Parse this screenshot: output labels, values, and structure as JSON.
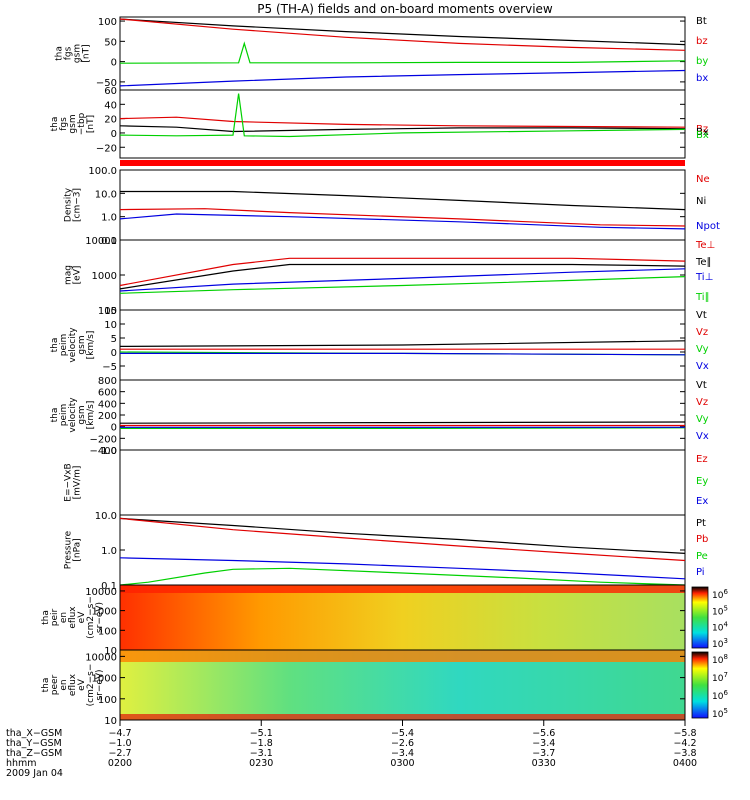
{
  "title": "P5 (TH-A) fields and on-board moments overview",
  "colors": {
    "black": "#000000",
    "red": "#e00000",
    "green": "#00d000",
    "blue": "#0000e0",
    "white": "#ffffff"
  },
  "date": "2009 Jan 04",
  "chart_data": [
    {
      "type": "line",
      "id": "fgs_gsm",
      "ylabel_lines": [
        "tha",
        "fgs",
        "gsm",
        "[nT]"
      ],
      "yscale": "linear",
      "ylim": [
        -70,
        110
      ],
      "ticks": [
        {
          "v": 100,
          "label": "100"
        },
        {
          "v": 50,
          "label": "50"
        },
        {
          "v": 0,
          "label": "0"
        },
        {
          "v": -50,
          "label": "−50"
        }
      ],
      "series": [
        {
          "name": "Bt",
          "color": "black",
          "x": [
            0,
            0.2,
            0.4,
            0.6,
            0.8,
            1.0
          ],
          "y": [
            105,
            88,
            74,
            62,
            52,
            42
          ]
        },
        {
          "name": "bz",
          "color": "red",
          "x": [
            0,
            0.2,
            0.4,
            0.6,
            0.8,
            1.0
          ],
          "y": [
            105,
            80,
            60,
            45,
            35,
            28
          ]
        },
        {
          "name": "by",
          "color": "green",
          "x": [
            0,
            0.21,
            0.22,
            0.23,
            0.4,
            0.6,
            0.8,
            1.0
          ],
          "y": [
            -4,
            -3,
            45,
            -3,
            -3,
            -2,
            -2,
            2
          ]
        },
        {
          "name": "bx",
          "color": "blue",
          "x": [
            0,
            0.2,
            0.4,
            0.6,
            0.8,
            1.0
          ],
          "y": [
            -60,
            -48,
            -38,
            -32,
            -27,
            -22
          ]
        }
      ]
    },
    {
      "type": "line",
      "id": "fgs_bp",
      "ylabel_lines": [
        "tha",
        "fgs",
        "gsm",
        "−tbp",
        "[nT]"
      ],
      "yscale": "linear",
      "ylim": [
        -35,
        60
      ],
      "ticks": [
        {
          "v": 60,
          "label": "60"
        },
        {
          "v": 40,
          "label": "40"
        },
        {
          "v": 20,
          "label": "20"
        },
        {
          "v": 0,
          "label": "0"
        },
        {
          "v": -20,
          "label": "−20"
        }
      ],
      "series": [
        {
          "name": "Bz",
          "color": "red",
          "x": [
            0,
            0.1,
            0.2,
            0.4,
            0.6,
            0.8,
            1.0
          ],
          "y": [
            20,
            22,
            16,
            12,
            10,
            9,
            8
          ]
        },
        {
          "name": "Bx",
          "color": "black",
          "x": [
            0,
            0.1,
            0.2,
            0.4,
            0.6,
            0.8,
            1.0
          ],
          "y": [
            10,
            8,
            2,
            5,
            7,
            7,
            6
          ]
        },
        {
          "name": "Bx",
          "color": "green",
          "x": [
            0,
            0.1,
            0.2,
            0.21,
            0.22,
            0.3,
            0.5,
            0.8,
            1.0
          ],
          "y": [
            -3,
            -4,
            -3,
            55,
            -4,
            -5,
            0,
            3,
            5
          ]
        }
      ]
    },
    {
      "type": "line",
      "id": "density",
      "ylabel_lines": [
        "Density",
        "[cm−3]"
      ],
      "yscale": "log",
      "ylim": [
        0.1,
        100
      ],
      "ticks": [
        {
          "v": 100,
          "label": "100.0"
        },
        {
          "v": 10,
          "label": "10.0"
        },
        {
          "v": 1,
          "label": "1.0"
        },
        {
          "v": 0.1,
          "label": "0.1"
        }
      ],
      "series": [
        {
          "name": "Ne",
          "color": "red",
          "x": [
            0,
            0.15,
            0.3,
            0.6,
            0.85,
            1.0
          ],
          "y": [
            2,
            2.2,
            1.5,
            0.8,
            0.45,
            0.4
          ]
        },
        {
          "name": "Ni",
          "color": "black",
          "x": [
            0,
            0.2,
            0.4,
            0.6,
            0.8,
            1.0
          ],
          "y": [
            12,
            12,
            8,
            5,
            3,
            2
          ]
        },
        {
          "name": "Npot",
          "color": "blue",
          "x": [
            0,
            0.1,
            0.3,
            0.6,
            0.85,
            1.0
          ],
          "y": [
            0.8,
            1.3,
            1.0,
            0.6,
            0.35,
            0.3
          ]
        }
      ]
    },
    {
      "type": "line",
      "id": "mag",
      "ylabel_lines": [
        "mag",
        "[eV]"
      ],
      "yscale": "log",
      "ylim": [
        100,
        10000
      ],
      "ticks": [
        {
          "v": 10000,
          "label": "10000"
        },
        {
          "v": 1000,
          "label": "1000"
        },
        {
          "v": 100,
          "label": "100"
        }
      ],
      "series": [
        {
          "name": "Te⊥",
          "color": "red",
          "x": [
            0,
            0.2,
            0.3,
            0.5,
            0.8,
            1.0
          ],
          "y": [
            500,
            2000,
            3000,
            3000,
            3000,
            2500
          ]
        },
        {
          "name": "Te∥",
          "color": "black",
          "x": [
            0,
            0.2,
            0.3,
            0.5,
            0.8,
            1.0
          ],
          "y": [
            400,
            1300,
            2000,
            2000,
            2000,
            1800
          ]
        },
        {
          "name": "Ti⊥",
          "color": "blue",
          "x": [
            0,
            0.2,
            0.5,
            0.8,
            1.0
          ],
          "y": [
            350,
            550,
            800,
            1200,
            1500
          ]
        },
        {
          "name": "Ti∥",
          "color": "green",
          "x": [
            0,
            0.2,
            0.5,
            0.8,
            1.0
          ],
          "y": [
            300,
            380,
            500,
            700,
            900
          ]
        }
      ]
    },
    {
      "type": "line",
      "id": "vel1",
      "ylabel_lines": [
        "tha",
        "peim",
        "velocity",
        "gsm",
        "[km/s]"
      ],
      "yscale": "linear",
      "ylim": [
        -10,
        15
      ],
      "ticks": [
        {
          "v": 15,
          "label": "15"
        },
        {
          "v": 10,
          "label": "10"
        },
        {
          "v": 5,
          "label": "5"
        },
        {
          "v": 0,
          "label": "0"
        },
        {
          "v": -5,
          "label": "−5"
        }
      ],
      "series": [
        {
          "name": "Vt",
          "color": "black",
          "x": [
            0,
            0.5,
            1.0
          ],
          "y": [
            2,
            2.5,
            4
          ]
        },
        {
          "name": "Vz",
          "color": "red",
          "x": [
            0,
            0.5,
            1.0
          ],
          "y": [
            1,
            1,
            1
          ]
        },
        {
          "name": "Vy",
          "color": "green",
          "x": [
            0,
            0.5,
            1.0
          ],
          "y": [
            0,
            -0.5,
            -1
          ]
        },
        {
          "name": "Vx",
          "color": "blue",
          "x": [
            0,
            0.5,
            1.0
          ],
          "y": [
            -0.5,
            -0.5,
            -1
          ]
        }
      ]
    },
    {
      "type": "line",
      "id": "vel2",
      "ylabel_lines": [
        "tha",
        "peim",
        "velocity",
        "gsm",
        "[km/s]"
      ],
      "yscale": "linear",
      "ylim": [
        -400,
        800
      ],
      "ticks": [
        {
          "v": 800,
          "label": "800"
        },
        {
          "v": 600,
          "label": "600"
        },
        {
          "v": 400,
          "label": "400"
        },
        {
          "v": 200,
          "label": "200"
        },
        {
          "v": 0,
          "label": "0"
        },
        {
          "v": -200,
          "label": "−200"
        },
        {
          "v": -400,
          "label": "−400"
        }
      ],
      "series": [
        {
          "name": "Vt",
          "color": "black",
          "x": [
            0,
            0.5,
            1.0
          ],
          "y": [
            60,
            70,
            80
          ]
        },
        {
          "name": "Vz",
          "color": "red",
          "x": [
            0,
            0.5,
            1.0
          ],
          "y": [
            20,
            20,
            20
          ]
        },
        {
          "name": "Vy",
          "color": "green",
          "x": [
            0,
            0.5,
            1.0
          ],
          "y": [
            -30,
            -30,
            -20
          ]
        },
        {
          "name": "Vx",
          "color": "blue",
          "x": [
            0,
            0.5,
            1.0
          ],
          "y": [
            -10,
            -10,
            -10
          ]
        }
      ]
    },
    {
      "type": "line",
      "id": "efield",
      "ylabel_lines": [
        "E=−VxB",
        "[mV/m]"
      ],
      "yscale": "linear",
      "ylim": [
        -1,
        1
      ],
      "ticks": [
        {
          "v": 1,
          "label": "1.0"
        }
      ],
      "series": [
        {
          "name": "Ez",
          "color": "red",
          "x": [],
          "y": []
        },
        {
          "name": "Ey",
          "color": "green",
          "x": [],
          "y": []
        },
        {
          "name": "Ex",
          "color": "blue",
          "x": [],
          "y": []
        }
      ]
    },
    {
      "type": "line",
      "id": "pressure",
      "ylabel_lines": [
        "Pressure",
        "[nPa]"
      ],
      "yscale": "log",
      "ylim": [
        0.1,
        10
      ],
      "ticks": [
        {
          "v": 10,
          "label": "10.0"
        },
        {
          "v": 1,
          "label": "1.0"
        },
        {
          "v": 0.1,
          "label": "0.1"
        }
      ],
      "series": [
        {
          "name": "Pt",
          "color": "black",
          "x": [
            0,
            0.2,
            0.4,
            0.6,
            0.8,
            1.0
          ],
          "y": [
            8,
            5,
            3,
            2,
            1.2,
            0.8
          ]
        },
        {
          "name": "Pb",
          "color": "red",
          "x": [
            0,
            0.2,
            0.4,
            0.6,
            0.8,
            1.0
          ],
          "y": [
            8,
            3.8,
            2.2,
            1.3,
            0.8,
            0.5
          ]
        },
        {
          "name": "Pe",
          "color": "green",
          "x": [
            0,
            0.05,
            0.15,
            0.2,
            0.3,
            0.5,
            0.7,
            0.85,
            1.0
          ],
          "y": [
            0.1,
            0.12,
            0.22,
            0.28,
            0.3,
            0.22,
            0.16,
            0.12,
            0.1
          ]
        },
        {
          "name": "Pi",
          "color": "blue",
          "x": [
            0,
            0.2,
            0.4,
            0.6,
            0.8,
            1.0
          ],
          "y": [
            0.6,
            0.5,
            0.4,
            0.3,
            0.22,
            0.15
          ]
        }
      ]
    },
    {
      "type": "heatmap",
      "id": "peir",
      "ylabel_lines": [
        "tha",
        "peir",
        "en",
        "eflux",
        "eV",
        "(cm2−s−",
        "sr−eV)"
      ],
      "yscale": "log",
      "ylim": [
        10,
        20000
      ],
      "ticks": [
        {
          "v": 10000,
          "label": "10000"
        },
        {
          "v": 1000,
          "label": "1000"
        },
        {
          "v": 100,
          "label": "100"
        },
        {
          "v": 10,
          "label": "10"
        }
      ],
      "colorbar": {
        "ticks": [
          {
            "exp": "6"
          },
          {
            "exp": "5"
          },
          {
            "exp": "4"
          },
          {
            "exp": "3"
          }
        ]
      }
    },
    {
      "type": "heatmap",
      "id": "peer",
      "ylabel_lines": [
        "tha",
        "peer",
        "en",
        "eflux",
        "eV",
        "(cm2−s−",
        "sr−eV)"
      ],
      "yscale": "log",
      "ylim": [
        10,
        20000
      ],
      "ticks": [
        {
          "v": 10000,
          "label": "10000"
        },
        {
          "v": 1000,
          "label": "1000"
        },
        {
          "v": 100,
          "label": "100"
        },
        {
          "v": 10,
          "label": "10"
        }
      ],
      "colorbar": {
        "ticks": [
          {
            "exp": "8"
          },
          {
            "exp": "7"
          },
          {
            "exp": "6"
          },
          {
            "exp": "5"
          }
        ]
      }
    }
  ],
  "xaxis": {
    "rows": [
      {
        "label": "tha_X−GSM",
        "values": [
          "−4.7",
          "−5.1",
          "−5.4",
          "−5.6",
          "−5.8"
        ]
      },
      {
        "label": "tha_Y−GSM",
        "values": [
          "−1.0",
          "−1.8",
          "−2.6",
          "−3.4",
          "−4.2"
        ]
      },
      {
        "label": "tha_Z−GSM",
        "values": [
          "−2.7",
          "−3.1",
          "−3.4",
          "−3.7",
          "−3.8"
        ]
      },
      {
        "label": "hhmm",
        "values": [
          "0200",
          "0230",
          "0300",
          "0330",
          "0400"
        ]
      }
    ]
  }
}
